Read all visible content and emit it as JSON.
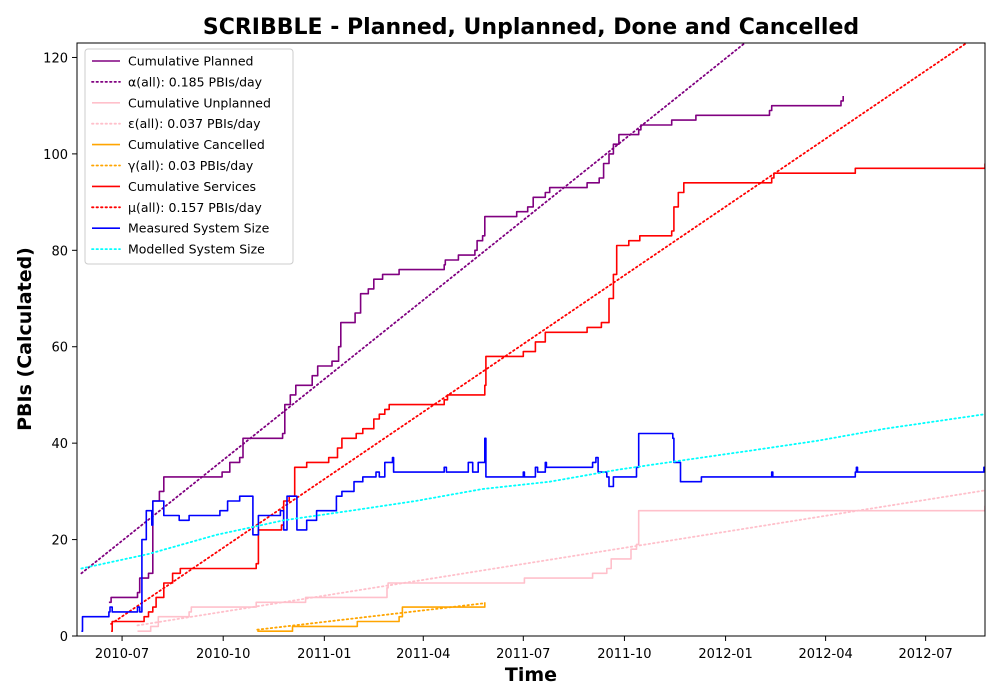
{
  "chart_data": {
    "type": "line",
    "title": "SCRIBBLE - Planned, Unplanned, Done  and Cancelled",
    "xlabel": "Time",
    "ylabel": "PBIs (Calculated)",
    "xlim": [
      "2010-05-21",
      "2012-08-24"
    ],
    "ylim": [
      0,
      123
    ],
    "x_ticks": [
      "2010-07-01",
      "2010-10-01",
      "2011-01-01",
      "2011-04-01",
      "2011-07-01",
      "2011-10-01",
      "2012-01-01",
      "2012-04-01",
      "2012-07-01"
    ],
    "x_tick_labels": [
      "2010-07",
      "2010-10",
      "2011-01",
      "2011-04",
      "2011-07",
      "2011-10",
      "2012-01",
      "2012-04",
      "2012-07"
    ],
    "y_ticks": [
      0,
      20,
      40,
      60,
      80,
      100,
      120
    ],
    "grid": false,
    "legend_position": "top-left",
    "series": [
      {
        "name": "Cumulative Planned",
        "color": "#800080",
        "style": "solid",
        "points": [
          [
            "2010-06-19",
            7
          ],
          [
            "2010-06-21",
            8
          ],
          [
            "2010-07-15",
            9
          ],
          [
            "2010-07-17",
            12
          ],
          [
            "2010-07-25",
            13
          ],
          [
            "2010-07-29",
            28
          ],
          [
            "2010-08-04",
            30
          ],
          [
            "2010-08-08",
            33
          ],
          [
            "2010-09-30",
            34
          ],
          [
            "2010-10-07",
            36
          ],
          [
            "2010-10-16",
            37
          ],
          [
            "2010-10-19",
            41
          ],
          [
            "2010-11-24",
            42
          ],
          [
            "2010-11-26",
            48
          ],
          [
            "2010-12-01",
            50
          ],
          [
            "2010-12-06",
            52
          ],
          [
            "2010-12-21",
            54
          ],
          [
            "2010-12-26",
            56
          ],
          [
            "2011-01-08",
            57
          ],
          [
            "2011-01-14",
            60
          ],
          [
            "2011-01-16",
            65
          ],
          [
            "2011-01-29",
            67
          ],
          [
            "2011-02-03",
            71
          ],
          [
            "2011-02-10",
            72
          ],
          [
            "2011-02-15",
            74
          ],
          [
            "2011-02-23",
            75
          ],
          [
            "2011-03-10",
            76
          ],
          [
            "2011-04-20",
            77
          ],
          [
            "2011-04-21",
            78
          ],
          [
            "2011-05-03",
            79
          ],
          [
            "2011-05-18",
            80
          ],
          [
            "2011-05-20",
            82
          ],
          [
            "2011-05-25",
            83
          ],
          [
            "2011-05-27",
            87
          ],
          [
            "2011-06-25",
            88
          ],
          [
            "2011-07-05",
            89
          ],
          [
            "2011-07-10",
            91
          ],
          [
            "2011-07-21",
            92
          ],
          [
            "2011-07-25",
            93
          ],
          [
            "2011-08-28",
            94
          ],
          [
            "2011-09-08",
            95
          ],
          [
            "2011-09-12",
            98
          ],
          [
            "2011-09-17",
            100
          ],
          [
            "2011-09-21",
            102
          ],
          [
            "2011-09-26",
            104
          ],
          [
            "2011-10-14",
            105
          ],
          [
            "2011-10-16",
            106
          ],
          [
            "2011-11-13",
            107
          ],
          [
            "2011-12-05",
            108
          ],
          [
            "2012-02-10",
            109
          ],
          [
            "2012-02-12",
            110
          ],
          [
            "2012-04-15",
            111
          ],
          [
            "2012-04-17",
            112
          ]
        ]
      },
      {
        "name": "α(all): 0.185 PBIs/day",
        "color": "#800080",
        "style": "dotted",
        "points": [
          [
            "2010-05-25",
            13
          ],
          [
            "2012-08-24",
            162.8
          ]
        ]
      },
      {
        "name": "Cumulative Unplanned",
        "color": "#ffc0cb",
        "style": "solid",
        "points": [
          [
            "2010-07-15",
            1
          ],
          [
            "2010-07-27",
            2
          ],
          [
            "2010-08-03",
            4
          ],
          [
            "2010-08-31",
            5
          ],
          [
            "2010-09-02",
            6
          ],
          [
            "2010-10-31",
            7
          ],
          [
            "2010-12-15",
            8
          ],
          [
            "2011-02-27",
            10
          ],
          [
            "2011-02-28",
            11
          ],
          [
            "2011-07-02",
            12
          ],
          [
            "2011-09-02",
            13
          ],
          [
            "2011-09-15",
            14
          ],
          [
            "2011-09-19",
            16
          ],
          [
            "2011-10-07",
            18
          ],
          [
            "2011-10-12",
            19
          ],
          [
            "2011-10-14",
            26
          ],
          [
            "2012-08-24",
            27
          ]
        ]
      },
      {
        "name": "ε(all): 0.037 PBIs/day",
        "color": "#ffc0cb",
        "style": "dotted",
        "points": [
          [
            "2010-07-15",
            2.2
          ],
          [
            "2012-08-24",
            30.2
          ]
        ]
      },
      {
        "name": "Cumulative Cancelled",
        "color": "#ffa500",
        "style": "solid",
        "points": [
          [
            "2010-11-01",
            1
          ],
          [
            "2010-12-03",
            2
          ],
          [
            "2011-01-31",
            3
          ],
          [
            "2011-03-10",
            4
          ],
          [
            "2011-03-13",
            6
          ],
          [
            "2011-05-27",
            7
          ]
        ]
      },
      {
        "name": "γ(all): 0.03 PBIs/day",
        "color": "#ffa500",
        "style": "dotted",
        "points": [
          [
            "2010-11-01",
            1.3
          ],
          [
            "2011-05-27",
            6.8
          ]
        ]
      },
      {
        "name": "Cumulative Services",
        "color": "#ff0000",
        "style": "solid",
        "points": [
          [
            "2010-06-21",
            1
          ],
          [
            "2010-06-22",
            3
          ],
          [
            "2010-07-21",
            4
          ],
          [
            "2010-07-25",
            5
          ],
          [
            "2010-07-29",
            6
          ],
          [
            "2010-08-01",
            8
          ],
          [
            "2010-08-08",
            11
          ],
          [
            "2010-08-16",
            13
          ],
          [
            "2010-08-23",
            14
          ],
          [
            "2010-10-31",
            15
          ],
          [
            "2010-11-02",
            22
          ],
          [
            "2010-11-23",
            23
          ],
          [
            "2010-11-25",
            28
          ],
          [
            "2010-11-30",
            29
          ],
          [
            "2010-12-05",
            35
          ],
          [
            "2010-12-16",
            36
          ],
          [
            "2011-01-05",
            37
          ],
          [
            "2011-01-13",
            39
          ],
          [
            "2011-01-17",
            41
          ],
          [
            "2011-01-30",
            42
          ],
          [
            "2011-02-05",
            43
          ],
          [
            "2011-02-15",
            45
          ],
          [
            "2011-02-20",
            46
          ],
          [
            "2011-02-25",
            47
          ],
          [
            "2011-03-01",
            48
          ],
          [
            "2011-04-20",
            49
          ],
          [
            "2011-04-23",
            50
          ],
          [
            "2011-05-27",
            52
          ],
          [
            "2011-05-28",
            58
          ],
          [
            "2011-07-01",
            59
          ],
          [
            "2011-07-12",
            61
          ],
          [
            "2011-07-21",
            63
          ],
          [
            "2011-08-28",
            64
          ],
          [
            "2011-09-10",
            65
          ],
          [
            "2011-09-17",
            70
          ],
          [
            "2011-09-21",
            75
          ],
          [
            "2011-09-24",
            81
          ],
          [
            "2011-10-05",
            82
          ],
          [
            "2011-10-15",
            83
          ],
          [
            "2011-11-13",
            84
          ],
          [
            "2011-11-15",
            89
          ],
          [
            "2011-11-19",
            92
          ],
          [
            "2011-11-24",
            94
          ],
          [
            "2012-02-12",
            95
          ],
          [
            "2012-02-14",
            96
          ],
          [
            "2012-04-28",
            97
          ],
          [
            "2012-08-24",
            98
          ]
        ]
      },
      {
        "name": "μ(all): 0.157 PBIs/day",
        "color": "#ff0000",
        "style": "dotted",
        "points": [
          [
            "2010-06-21",
            2.5
          ],
          [
            "2012-08-24",
            125.6
          ]
        ]
      },
      {
        "name": "Measured System Size",
        "color": "#0000ff",
        "style": "solid",
        "points": [
          [
            "2010-05-25",
            1
          ],
          [
            "2010-05-26",
            4
          ],
          [
            "2010-06-19",
            5
          ],
          [
            "2010-06-20",
            6
          ],
          [
            "2010-06-22",
            5
          ],
          [
            "2010-07-15",
            6
          ],
          [
            "2010-07-17",
            5
          ],
          [
            "2010-07-19",
            20
          ],
          [
            "2010-07-23",
            26
          ],
          [
            "2010-07-28",
            23
          ],
          [
            "2010-07-29",
            28
          ],
          [
            "2010-08-04",
            28
          ],
          [
            "2010-08-08",
            25
          ],
          [
            "2010-08-22",
            24
          ],
          [
            "2010-08-31",
            25
          ],
          [
            "2010-09-28",
            26
          ],
          [
            "2010-10-05",
            28
          ],
          [
            "2010-10-16",
            29
          ],
          [
            "2010-10-28",
            21
          ],
          [
            "2010-11-02",
            25
          ],
          [
            "2010-11-22",
            26
          ],
          [
            "2010-11-25",
            22
          ],
          [
            "2010-11-28",
            29
          ],
          [
            "2010-12-07",
            22
          ],
          [
            "2010-12-16",
            24
          ],
          [
            "2010-12-25",
            26
          ],
          [
            "2011-01-08",
            26
          ],
          [
            "2011-01-12",
            29
          ],
          [
            "2011-01-17",
            30
          ],
          [
            "2011-01-28",
            32
          ],
          [
            "2011-02-05",
            33
          ],
          [
            "2011-02-17",
            34
          ],
          [
            "2011-02-20",
            33
          ],
          [
            "2011-02-25",
            36
          ],
          [
            "2011-03-04",
            37
          ],
          [
            "2011-03-05",
            34
          ],
          [
            "2011-04-20",
            35
          ],
          [
            "2011-04-22",
            34
          ],
          [
            "2011-05-06",
            34
          ],
          [
            "2011-05-12",
            36
          ],
          [
            "2011-05-16",
            34
          ],
          [
            "2011-05-21",
            36
          ],
          [
            "2011-05-27",
            41
          ],
          [
            "2011-05-28",
            33
          ],
          [
            "2011-07-01",
            34
          ],
          [
            "2011-07-02",
            33
          ],
          [
            "2011-07-12",
            35
          ],
          [
            "2011-07-14",
            34
          ],
          [
            "2011-07-21",
            36
          ],
          [
            "2011-07-22",
            35
          ],
          [
            "2011-09-02",
            36
          ],
          [
            "2011-09-05",
            37
          ],
          [
            "2011-09-07",
            34
          ],
          [
            "2011-09-15",
            33
          ],
          [
            "2011-09-17",
            31
          ],
          [
            "2011-09-21",
            33
          ],
          [
            "2011-10-06",
            33
          ],
          [
            "2011-10-12",
            35
          ],
          [
            "2011-10-14",
            42
          ],
          [
            "2011-11-14",
            41
          ],
          [
            "2011-11-15",
            36
          ],
          [
            "2011-11-21",
            32
          ],
          [
            "2011-12-10",
            33
          ],
          [
            "2012-02-12",
            34
          ],
          [
            "2012-02-13",
            33
          ],
          [
            "2012-04-28",
            34
          ],
          [
            "2012-04-29",
            35
          ],
          [
            "2012-04-30",
            34
          ],
          [
            "2012-08-23",
            35
          ],
          [
            "2012-08-24",
            34
          ]
        ]
      },
      {
        "name": "Modelled System Size",
        "color": "#00ffff",
        "style": "dotted",
        "points": [
          [
            "2010-05-25",
            14
          ],
          [
            "2010-07-25",
            17
          ],
          [
            "2010-09-25",
            21
          ],
          [
            "2010-11-25",
            24
          ],
          [
            "2011-01-25",
            26
          ],
          [
            "2011-03-25",
            28
          ],
          [
            "2011-05-25",
            30.5
          ],
          [
            "2011-07-25",
            32
          ],
          [
            "2011-09-25",
            34.5
          ],
          [
            "2011-11-25",
            36.5
          ],
          [
            "2012-01-25",
            38.5
          ],
          [
            "2012-03-25",
            40.5
          ],
          [
            "2012-05-25",
            43
          ],
          [
            "2012-08-24",
            46
          ]
        ]
      }
    ]
  }
}
